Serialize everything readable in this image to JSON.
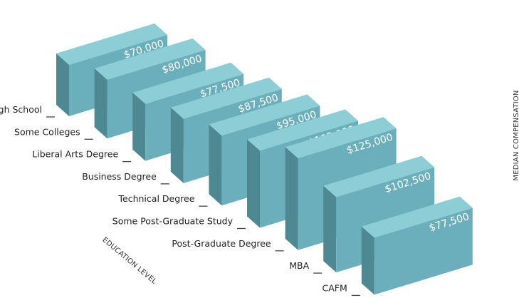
{
  "chart_data": {
    "type": "bar",
    "style": "3d-isometric",
    "categories": [
      "High School",
      "Some Colleges",
      "Liberal Arts Degree",
      "Business Degree",
      "Technical Degree",
      "Some Post-Graduate Study",
      "Post-Graduate Degree",
      "MBA",
      "CAFM"
    ],
    "values": [
      70000,
      80000,
      77500,
      87500,
      95000,
      105000,
      125000,
      102500,
      77500
    ],
    "value_labels": [
      "$70,000",
      "$80,000",
      "$77,500",
      "$87,500",
      "$95,000",
      "$105,000",
      "$125,000",
      "$102,500",
      "$77,500"
    ],
    "xlabel": "EDUCATION LEVEL",
    "ylabel": "MEDIAN COMPENSATION",
    "grid": false,
    "legend": "none"
  },
  "colors": {
    "front_face": "#6aafbb",
    "side_face": "#4e8892",
    "top_face": "#8ccdd6",
    "label_text": "#222222",
    "value_text": "#ffffff",
    "tick": "#444444"
  }
}
